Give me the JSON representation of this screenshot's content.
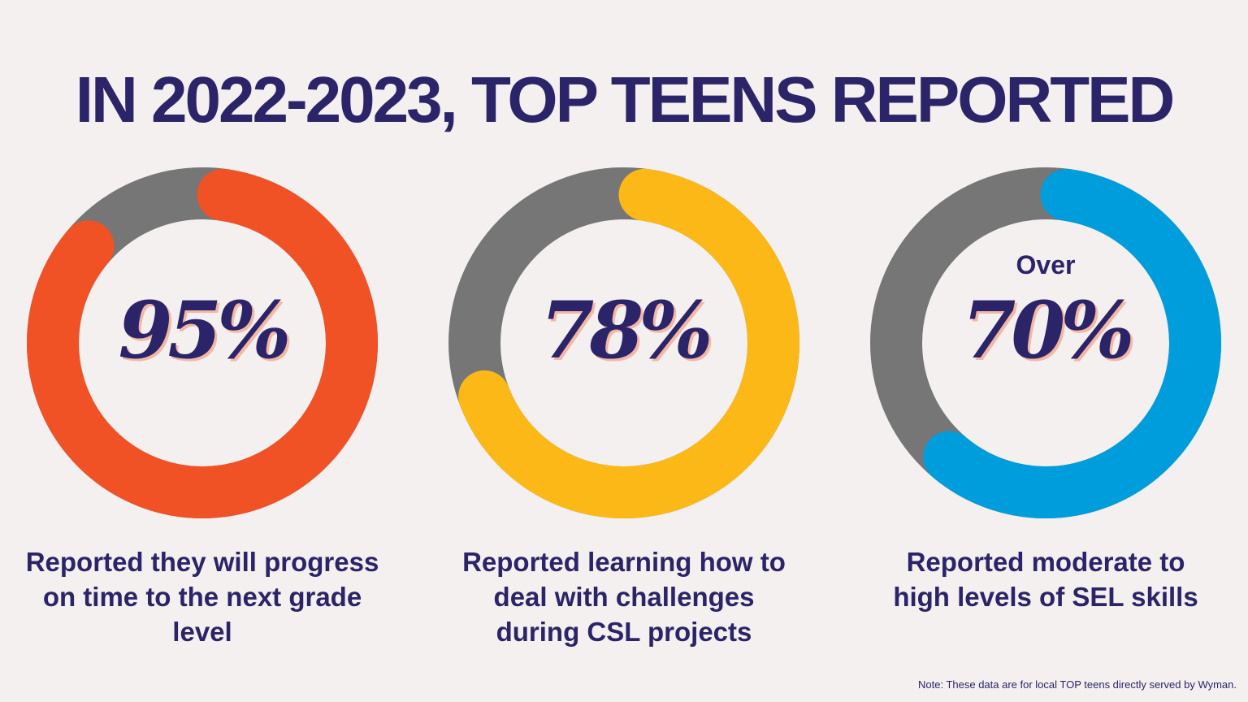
{
  "title": "IN 2022-2023, TOP TEENS REPORTED",
  "chart_data": [
    {
      "type": "pie",
      "variant": "donut",
      "value": 95,
      "unit": "%",
      "label": "95%",
      "caption": "Reported they will progress on time to the next grade level",
      "color": "#f05125",
      "remainder_color": "#767676"
    },
    {
      "type": "pie",
      "variant": "donut",
      "value": 78,
      "unit": "%",
      "label": "78%",
      "caption": "Reported learning how to deal with challenges during CSL projects",
      "color": "#fbb817",
      "remainder_color": "#767676"
    },
    {
      "type": "pie",
      "variant": "donut",
      "value": 70,
      "unit": "%",
      "prefix": "Over",
      "label": "70%",
      "caption": "Reported moderate to high levels of SEL skills",
      "color": "#009ddc",
      "remainder_color": "#767676"
    }
  ],
  "note": "Note: These data are for local TOP teens directly served by Wyman."
}
